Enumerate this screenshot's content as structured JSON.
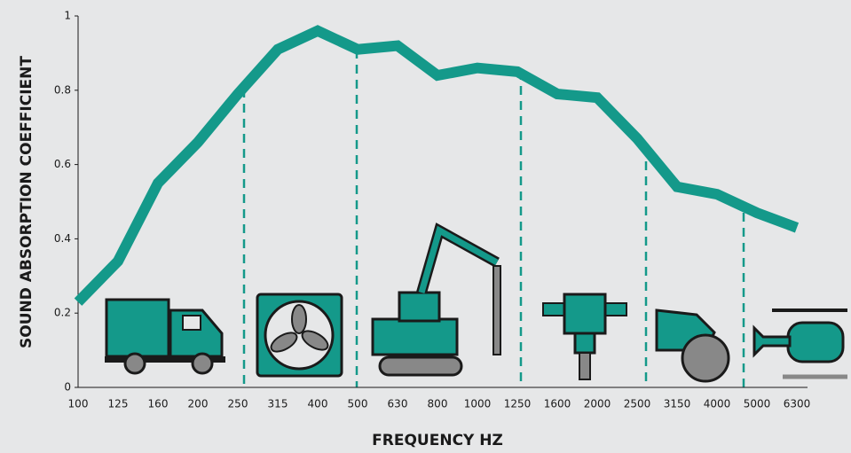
{
  "chart_data": {
    "type": "line",
    "x_label": "FREQUENCY HZ",
    "y_label": "SOUND ABSORPTION COEFFICIENT",
    "categories": [
      "100",
      "125",
      "160",
      "200",
      "250",
      "315",
      "400",
      "500",
      "630",
      "800",
      "1000",
      "1250",
      "1600",
      "2000",
      "2500",
      "3150",
      "4000",
      "5000",
      "6300"
    ],
    "series": [
      {
        "color": "#14998a",
        "values": [
          0.23,
          0.34,
          0.55,
          0.66,
          0.79,
          0.91,
          0.96,
          0.91,
          0.92,
          0.84,
          0.86,
          0.85,
          0.79,
          0.78,
          0.67,
          0.54,
          0.52,
          0.47,
          0.43
        ]
      }
    ],
    "ylim": [
      0,
      1
    ],
    "yticks": [
      0,
      0.2,
      0.4,
      0.6,
      0.8,
      1
    ]
  }
}
